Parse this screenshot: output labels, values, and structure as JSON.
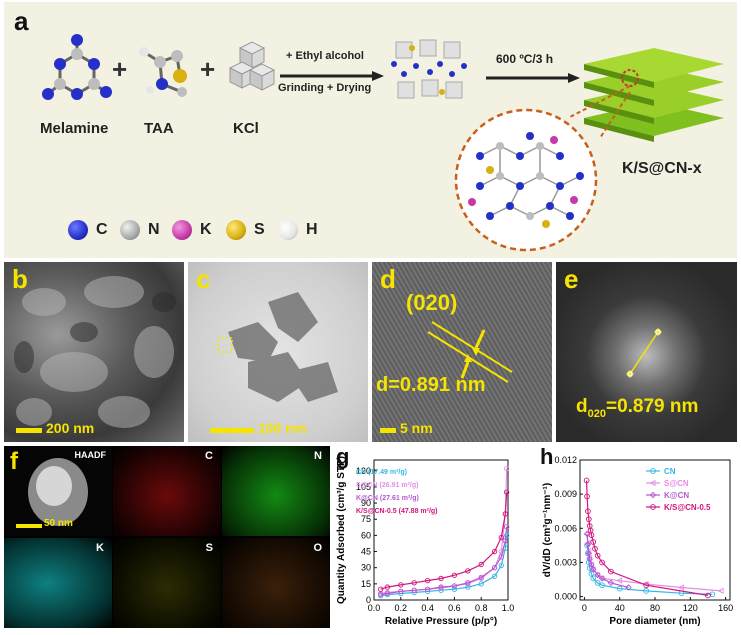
{
  "panel_a": {
    "letter": "a",
    "molecules": [
      "Melamine",
      "TAA",
      "KCl"
    ],
    "arrow1_top": "+ Ethyl alcohol",
    "arrow1_bottom": "Grinding + Drying",
    "arrow2_top": "600 ºC/3 h",
    "product": "K/S@CN-x",
    "legend": [
      {
        "symbol": "C",
        "color": "#2530c8"
      },
      {
        "symbol": "N",
        "color": "#a9a9a9"
      },
      {
        "symbol": "K",
        "color": "#c63aa8"
      },
      {
        "symbol": "S",
        "color": "#d8b010"
      },
      {
        "symbol": "H",
        "color": "#e6e6e6"
      }
    ]
  },
  "micro": {
    "b": {
      "letter": "b",
      "scale": "200 nm"
    },
    "c": {
      "letter": "c",
      "scale": "100 nm"
    },
    "d": {
      "letter": "d",
      "plane": "(020)",
      "spacing": "d=0.891 nm",
      "scale": "5 nm"
    },
    "e": {
      "letter": "e",
      "spacing_prefix": "d",
      "spacing_sub": "020",
      "spacing_suffix": "=0.879 nm"
    }
  },
  "panel_f": {
    "letter": "f",
    "tiles": [
      "HAADF",
      "C",
      "N",
      "K",
      "S",
      "O"
    ],
    "scale": "50 nm",
    "tile_colors": {
      "C": "#d21a1a",
      "N": "#1ec81e",
      "K": "#15b5b5",
      "S": "#d8d81a",
      "O": "#c0702a"
    }
  },
  "chart_data": [
    {
      "panel": "g",
      "type": "line",
      "xlabel": "Relative Pressure (p/p°)",
      "ylabel": "Quantity Adsorbed (cm³/g STP)",
      "xlim": [
        0.0,
        1.0
      ],
      "ylim": [
        0,
        130
      ],
      "xticks": [
        "0.0",
        "0.2",
        "0.4",
        "0.6",
        "0.8",
        "1.0"
      ],
      "yticks": [
        "0",
        "15",
        "30",
        "45",
        "60",
        "75",
        "90",
        "105",
        "120"
      ],
      "legend_position": "top-left",
      "series": [
        {
          "name": "CN (17.49 m²/g)",
          "color": "#33b8e6",
          "x": [
            0.05,
            0.1,
            0.2,
            0.3,
            0.4,
            0.5,
            0.6,
            0.7,
            0.8,
            0.9,
            0.95,
            0.98,
            0.99
          ],
          "y": [
            4,
            5,
            6,
            7,
            8,
            9,
            10,
            12,
            15,
            22,
            32,
            48,
            60
          ]
        },
        {
          "name": "S@CN (26.91 m²/g)",
          "color": "#e68ce6",
          "x": [
            0.05,
            0.1,
            0.2,
            0.3,
            0.4,
            0.5,
            0.6,
            0.7,
            0.8,
            0.9,
            0.95,
            0.98,
            0.99
          ],
          "y": [
            6,
            7,
            8,
            9,
            10,
            11,
            13,
            15,
            20,
            30,
            45,
            80,
            122
          ]
        },
        {
          "name": "K@CN (27.61 m²/g)",
          "color": "#b45ad2",
          "x": [
            0.05,
            0.1,
            0.2,
            0.3,
            0.4,
            0.5,
            0.6,
            0.7,
            0.8,
            0.9,
            0.95,
            0.98,
            0.99
          ],
          "y": [
            5,
            6,
            8,
            9,
            10,
            12,
            13,
            16,
            21,
            30,
            40,
            55,
            68
          ]
        },
        {
          "name": "K/S@CN-0.5 (47.88 m²/g)",
          "color": "#d2147d",
          "x": [
            0.05,
            0.1,
            0.2,
            0.3,
            0.4,
            0.5,
            0.6,
            0.7,
            0.8,
            0.9,
            0.95,
            0.98,
            0.99
          ],
          "y": [
            10,
            12,
            14,
            16,
            18,
            20,
            23,
            27,
            33,
            45,
            58,
            80,
            100
          ]
        }
      ]
    },
    {
      "panel": "h",
      "type": "line",
      "xlabel": "Pore diameter (nm)",
      "ylabel": "dV/dD (cm³g⁻¹nm⁻¹)",
      "xlim": [
        -5,
        165
      ],
      "ylim": [
        -0.0003,
        0.012
      ],
      "xticks": [
        "0",
        "40",
        "80",
        "120",
        "160"
      ],
      "yticks": [
        "0.000",
        "0.003",
        "0.006",
        "0.009",
        "0.012"
      ],
      "legend_position": "top-right",
      "series": [
        {
          "name": "CN",
          "color": "#33b8e6",
          "x": [
            3,
            4,
            5,
            6,
            8,
            10,
            15,
            20,
            40,
            70,
            110,
            145
          ],
          "y": [
            0.0045,
            0.0038,
            0.003,
            0.0025,
            0.002,
            0.0016,
            0.0012,
            0.001,
            0.0007,
            0.0005,
            0.0003,
            0.0002
          ]
        },
        {
          "name": "S@CN",
          "color": "#e68ce6",
          "x": [
            3,
            4,
            5,
            6,
            8,
            10,
            15,
            20,
            40,
            70,
            110,
            155
          ],
          "y": [
            0.0055,
            0.0047,
            0.004,
            0.0034,
            0.0028,
            0.0024,
            0.0019,
            0.0016,
            0.0014,
            0.0011,
            0.0008,
            0.0005
          ]
        },
        {
          "name": "K@CN",
          "color": "#b45ad2",
          "x": [
            3,
            4,
            5,
            6,
            8,
            10,
            15,
            20,
            30,
            50
          ],
          "y": [
            0.0055,
            0.0046,
            0.0038,
            0.0033,
            0.0028,
            0.0024,
            0.0019,
            0.0016,
            0.0012,
            0.0008
          ]
        },
        {
          "name": "K/S@CN-0.5",
          "color": "#d2147d",
          "x": [
            2.5,
            3,
            4,
            5,
            6,
            7,
            8,
            10,
            12,
            15,
            20,
            30,
            70,
            140
          ],
          "y": [
            0.0102,
            0.0088,
            0.0075,
            0.0068,
            0.0062,
            0.0058,
            0.0054,
            0.0048,
            0.0042,
            0.0036,
            0.003,
            0.0022,
            0.001,
            0.0001
          ]
        }
      ]
    }
  ]
}
